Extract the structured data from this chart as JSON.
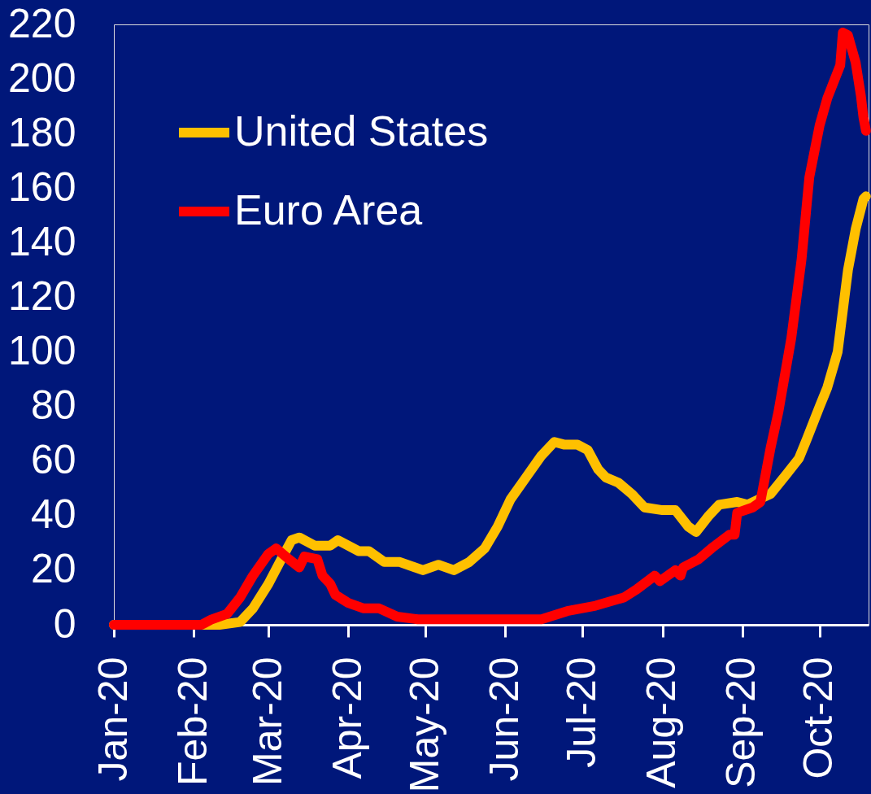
{
  "chart_data": {
    "type": "line",
    "xlim": [
      "2020-01-01",
      "2020-10-20"
    ],
    "ylim": [
      0,
      220
    ],
    "yticks": [
      0,
      20,
      40,
      60,
      80,
      100,
      120,
      140,
      160,
      180,
      200,
      220
    ],
    "xticks": [
      {
        "value": "2020-01-01",
        "label": "Jan-20"
      },
      {
        "value": "2020-02-01",
        "label": "Feb-20"
      },
      {
        "value": "2020-03-01",
        "label": "Mar-20"
      },
      {
        "value": "2020-04-01",
        "label": "Apr-20"
      },
      {
        "value": "2020-05-01",
        "label": "May-20"
      },
      {
        "value": "2020-06-01",
        "label": "Jun-20"
      },
      {
        "value": "2020-07-01",
        "label": "Jul-20"
      },
      {
        "value": "2020-08-01",
        "label": "Aug-20"
      },
      {
        "value": "2020-09-01",
        "label": "Sep-20"
      },
      {
        "value": "2020-10-01",
        "label": "Oct-20"
      }
    ],
    "legend": "top left",
    "series": [
      {
        "name": "United States",
        "color": "#ffc000",
        "x": [
          "2020-01-01",
          "2020-02-11",
          "2020-02-19",
          "2020-02-24",
          "2020-03-01",
          "2020-03-06",
          "2020-03-10",
          "2020-03-13",
          "2020-03-19",
          "2020-03-25",
          "2020-03-28",
          "2020-04-05",
          "2020-04-09",
          "2020-04-15",
          "2020-04-21",
          "2020-04-30",
          "2020-05-06",
          "2020-05-12",
          "2020-05-18",
          "2020-05-24",
          "2020-05-29",
          "2020-06-03",
          "2020-06-09",
          "2020-06-15",
          "2020-06-20",
          "2020-06-24",
          "2020-06-29",
          "2020-07-03",
          "2020-07-07",
          "2020-07-10",
          "2020-07-15",
          "2020-07-20",
          "2020-07-25",
          "2020-08-01",
          "2020-08-06",
          "2020-08-11",
          "2020-08-14",
          "2020-08-19",
          "2020-08-23",
          "2020-08-30",
          "2020-09-03",
          "2020-09-12",
          "2020-09-18",
          "2020-09-23",
          "2020-09-26",
          "2020-10-01",
          "2020-10-04",
          "2020-10-08",
          "2020-10-10",
          "2020-10-12",
          "2020-10-15",
          "2020-10-18",
          "2020-10-19"
        ],
        "values": [
          0,
          0,
          1,
          6,
          15,
          24,
          31,
          32,
          29,
          29,
          31,
          27,
          27,
          23,
          23,
          20,
          22,
          20,
          23,
          28,
          36,
          46,
          54,
          62,
          67,
          66,
          66,
          64,
          57,
          54,
          52,
          48,
          43,
          42,
          42,
          36,
          34,
          40,
          44,
          45,
          44,
          48,
          55,
          61,
          68,
          80,
          87,
          100,
          115,
          130,
          145,
          156,
          157
        ]
      },
      {
        "name": "Euro Area",
        "color": "#ff0000",
        "x": [
          "2020-01-01",
          "2020-02-04",
          "2020-02-08",
          "2020-02-14",
          "2020-02-19",
          "2020-02-24",
          "2020-03-01",
          "2020-03-04",
          "2020-03-09",
          "2020-03-13",
          "2020-03-15",
          "2020-03-20",
          "2020-03-22",
          "2020-03-25",
          "2020-03-27",
          "2020-04-01",
          "2020-04-07",
          "2020-04-13",
          "2020-04-20",
          "2020-04-28",
          "2020-05-08",
          "2020-05-24",
          "2020-06-03",
          "2020-06-15",
          "2020-06-25",
          "2020-07-06",
          "2020-07-17",
          "2020-07-22",
          "2020-07-29",
          "2020-07-31",
          "2020-08-06",
          "2020-08-08",
          "2020-08-09",
          "2020-08-15",
          "2020-08-20",
          "2020-08-27",
          "2020-08-29",
          "2020-08-30",
          "2020-09-05",
          "2020-09-08",
          "2020-09-09",
          "2020-09-12",
          "2020-09-15",
          "2020-09-20",
          "2020-09-24",
          "2020-09-27",
          "2020-10-01",
          "2020-10-04",
          "2020-10-09",
          "2020-10-10",
          "2020-10-12",
          "2020-10-15",
          "2020-10-17",
          "2020-10-18",
          "2020-10-19"
        ],
        "values": [
          0,
          0,
          2,
          4,
          10,
          18,
          26,
          28,
          24,
          21,
          25,
          24,
          18,
          15,
          11,
          8,
          6,
          6,
          3,
          2,
          2,
          2,
          2,
          2,
          5,
          7,
          10,
          13,
          18,
          16,
          20,
          18,
          21,
          24,
          28,
          33,
          33,
          41,
          43,
          45,
          50,
          65,
          78,
          105,
          134,
          164,
          183,
          193,
          205,
          217,
          216,
          206,
          194,
          186,
          181
        ]
      }
    ]
  }
}
